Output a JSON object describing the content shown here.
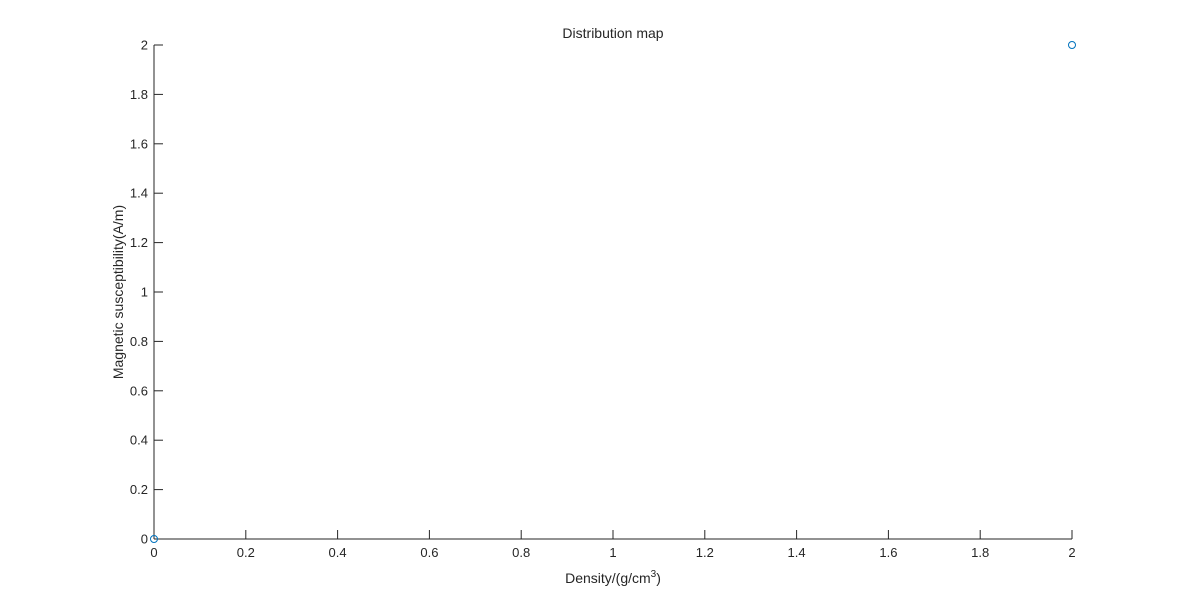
{
  "chart_data": {
    "type": "scatter",
    "title": "Distribution map",
    "xlabel": {
      "base": "Density/(g/cm",
      "superscript": "3",
      "suffix": ")"
    },
    "ylabel": "Magnetic susceptibility(A/m)",
    "xlim": [
      0,
      2
    ],
    "ylim": [
      0,
      2
    ],
    "xticks": [
      0,
      0.2,
      0.4,
      0.6,
      0.8,
      1,
      1.2,
      1.4,
      1.6,
      1.8,
      2
    ],
    "yticks": [
      0,
      0.2,
      0.4,
      0.6,
      0.8,
      1,
      1.2,
      1.4,
      1.6,
      1.8,
      2
    ],
    "xtick_labels": [
      "0",
      "0.2",
      "0.4",
      "0.6",
      "0.8",
      "1",
      "1.2",
      "1.4",
      "1.6",
      "1.8",
      "2"
    ],
    "ytick_labels": [
      "0",
      "0.2",
      "0.4",
      "0.6",
      "0.8",
      "1",
      "1.2",
      "1.4",
      "1.6",
      "1.8",
      "2"
    ],
    "grid": false,
    "series": [
      {
        "marker": "circle-open",
        "color": "#0072bd",
        "points": [
          {
            "x": 0,
            "y": 0
          },
          {
            "x": 2,
            "y": 2
          }
        ]
      }
    ]
  }
}
